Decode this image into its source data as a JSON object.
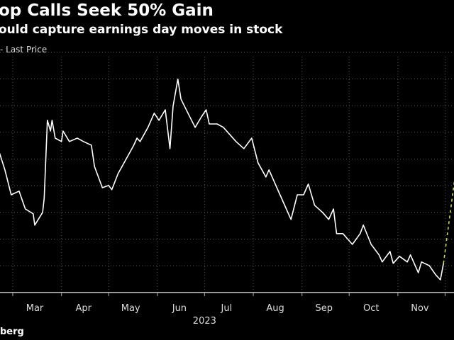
{
  "header": {
    "title": "op Calls Seek 50% Gain",
    "subtitle": "ould capture earnings day moves in stock"
  },
  "legend": {
    "label": "- Last Price"
  },
  "footer": {
    "source": "berg"
  },
  "colors": {
    "background": "#000000",
    "line": "#ffffff",
    "projection": "#c8d26a",
    "grid": "#555555"
  },
  "chart_data": {
    "type": "line",
    "title": "op Calls Seek 50% Gain",
    "subtitle": "ould capture earnings day moves in stock",
    "xlabel": "2023",
    "x_ticks": [
      "Mar",
      "Apr",
      "May",
      "Jun",
      "Jul",
      "Aug",
      "Sep",
      "Oct",
      "Nov"
    ],
    "grid": true,
    "legend_position": "top-left",
    "series": [
      {
        "name": "Last Price",
        "style": "solid",
        "points": [
          [
            "2023-02-19",
            52
          ],
          [
            "2023-02-24",
            43.3
          ],
          [
            "2023-02-28",
            34.5
          ],
          [
            "2023-03-05",
            35.8
          ],
          [
            "2023-03-09",
            29.5
          ],
          [
            "2023-03-14",
            27.8
          ],
          [
            "2023-03-15",
            23.8
          ],
          [
            "2023-03-20",
            28.3
          ],
          [
            "2023-03-21",
            33.3
          ],
          [
            "2023-03-23",
            60.8
          ],
          [
            "2023-03-25",
            57
          ],
          [
            "2023-03-26",
            60.8
          ],
          [
            "2023-03-28",
            54.5
          ],
          [
            "2023-04-01",
            53.3
          ],
          [
            "2023-04-02",
            57
          ],
          [
            "2023-04-06",
            53.3
          ],
          [
            "2023-04-11",
            54.5
          ],
          [
            "2023-04-15",
            53.3
          ],
          [
            "2023-04-20",
            52
          ],
          [
            "2023-04-22",
            44.5
          ],
          [
            "2023-04-27",
            37
          ],
          [
            "2023-05-01",
            37.8
          ],
          [
            "2023-05-03",
            36.3
          ],
          [
            "2023-05-07",
            42
          ],
          [
            "2023-05-12",
            47
          ],
          [
            "2023-05-17",
            52
          ],
          [
            "2023-05-19",
            54.5
          ],
          [
            "2023-05-21",
            53.3
          ],
          [
            "2023-05-26",
            58.3
          ],
          [
            "2023-05-30",
            63.3
          ],
          [
            "2023-06-02",
            60.8
          ],
          [
            "2023-06-06",
            64.5
          ],
          [
            "2023-06-09",
            50.8
          ],
          [
            "2023-06-10",
            58.3
          ],
          [
            "2023-06-11",
            65.8
          ],
          [
            "2023-06-14",
            75.3
          ],
          [
            "2023-06-16",
            68.3
          ],
          [
            "2023-06-20",
            63.8
          ],
          [
            "2023-06-25",
            58.3
          ],
          [
            "2023-06-29",
            62
          ],
          [
            "2023-07-02",
            64.5
          ],
          [
            "2023-07-04",
            59.5
          ],
          [
            "2023-07-09",
            59.5
          ],
          [
            "2023-07-13",
            58.3
          ],
          [
            "2023-07-17",
            55.8
          ],
          [
            "2023-07-21",
            53.3
          ],
          [
            "2023-07-26",
            50.8
          ],
          [
            "2023-07-31",
            54.5
          ],
          [
            "2023-08-04",
            45.8
          ],
          [
            "2023-08-09",
            40.8
          ],
          [
            "2023-08-11",
            43.3
          ],
          [
            "2023-08-16",
            37
          ],
          [
            "2023-08-20",
            32
          ],
          [
            "2023-08-25",
            25.8
          ],
          [
            "2023-08-29",
            34.5
          ],
          [
            "2023-09-02",
            34.5
          ],
          [
            "2023-09-05",
            38.3
          ],
          [
            "2023-09-09",
            30.8
          ],
          [
            "2023-09-14",
            28.3
          ],
          [
            "2023-09-18",
            25.8
          ],
          [
            "2023-09-21",
            29.5
          ],
          [
            "2023-09-23",
            20.8
          ],
          [
            "2023-09-27",
            20.8
          ],
          [
            "2023-10-03",
            17
          ],
          [
            "2023-10-08",
            20.8
          ],
          [
            "2023-10-10",
            23.8
          ],
          [
            "2023-10-15",
            17
          ],
          [
            "2023-10-20",
            13.3
          ],
          [
            "2023-10-22",
            10.8
          ],
          [
            "2023-10-27",
            14.5
          ],
          [
            "2023-10-29",
            10.3
          ],
          [
            "2023-11-02",
            12.8
          ],
          [
            "2023-11-07",
            10.8
          ],
          [
            "2023-11-09",
            13.3
          ],
          [
            "2023-11-14",
            7
          ],
          [
            "2023-11-16",
            10.8
          ],
          [
            "2023-11-21",
            9.5
          ],
          [
            "2023-11-25",
            6.3
          ],
          [
            "2023-11-28",
            4.5
          ],
          [
            "2023-11-30",
            10.3
          ]
        ]
      },
      {
        "style": "dashed",
        "points": [
          [
            "2023-11-30",
            10.3
          ],
          [
            "2023-12-07",
            39.5
          ]
        ]
      }
    ]
  }
}
